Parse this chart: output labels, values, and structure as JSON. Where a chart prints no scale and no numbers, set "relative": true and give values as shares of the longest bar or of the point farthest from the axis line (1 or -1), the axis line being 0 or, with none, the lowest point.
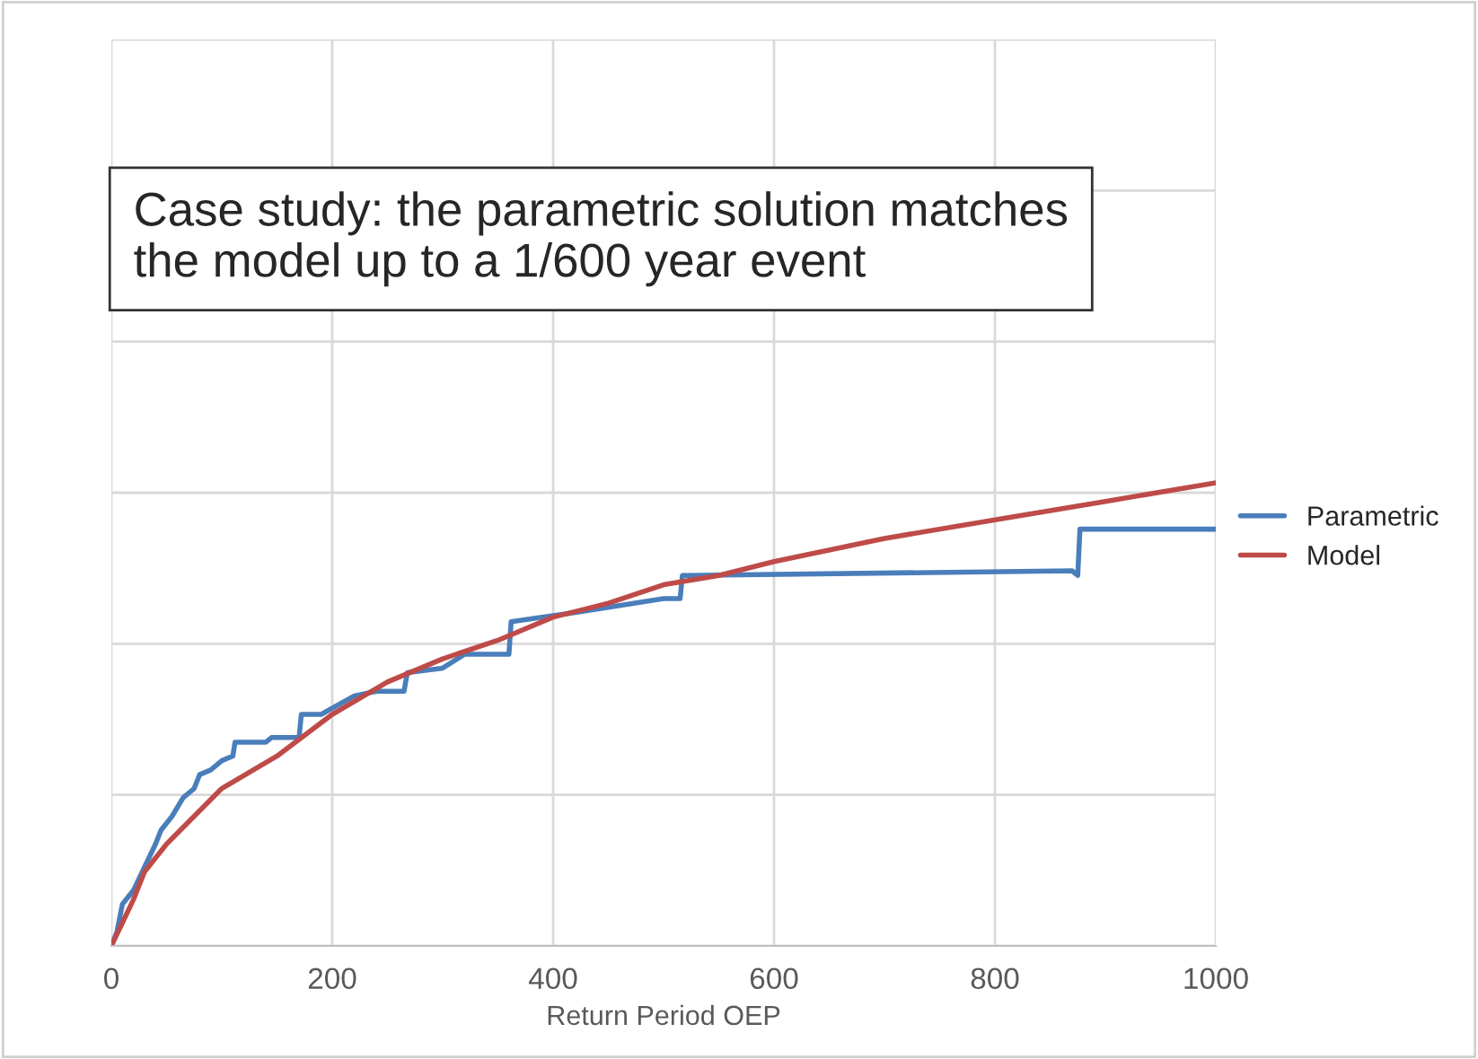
{
  "chart_data": {
    "type": "line",
    "relative": true,
    "xlabel": "Return Period OEP",
    "annotations": [
      "Case study: the parametric solution matches\nthe model up to a 1/600 year event"
    ],
    "xlim": [
      0,
      1000
    ],
    "xticks": [
      0,
      200,
      400,
      600,
      800,
      1000
    ],
    "grid": true,
    "legend": "right",
    "tick_labels": "x",
    "series": [
      {
        "name": "Parametric",
        "color": "#4a7ebb",
        "x": [
          0,
          5,
          10,
          20,
          30,
          40,
          45,
          55,
          65,
          75,
          80,
          90,
          100,
          110,
          112,
          140,
          145,
          170,
          172,
          190,
          220,
          240,
          245,
          265,
          268,
          300,
          320,
          360,
          362,
          390,
          420,
          500,
          515,
          517,
          870,
          875,
          877,
          1000
        ],
        "values": [
          0,
          0.03,
          0.09,
          0.12,
          0.17,
          0.22,
          0.25,
          0.28,
          0.32,
          0.34,
          0.37,
          0.38,
          0.4,
          0.41,
          0.44,
          0.44,
          0.45,
          0.45,
          0.5,
          0.5,
          0.54,
          0.55,
          0.55,
          0.55,
          0.59,
          0.6,
          0.63,
          0.63,
          0.7,
          0.71,
          0.72,
          0.75,
          0.75,
          0.8,
          0.81,
          0.8,
          0.9,
          0.9
        ]
      },
      {
        "name": "Model",
        "color": "#be4b48",
        "x": [
          0,
          10,
          20,
          30,
          50,
          75,
          100,
          150,
          200,
          250,
          300,
          350,
          400,
          450,
          500,
          550,
          600,
          700,
          800,
          900,
          1000
        ],
        "values": [
          0,
          0.05,
          0.1,
          0.16,
          0.22,
          0.28,
          0.34,
          0.41,
          0.5,
          0.57,
          0.62,
          0.66,
          0.71,
          0.74,
          0.78,
          0.8,
          0.83,
          0.88,
          0.92,
          0.96,
          1
        ]
      }
    ]
  }
}
